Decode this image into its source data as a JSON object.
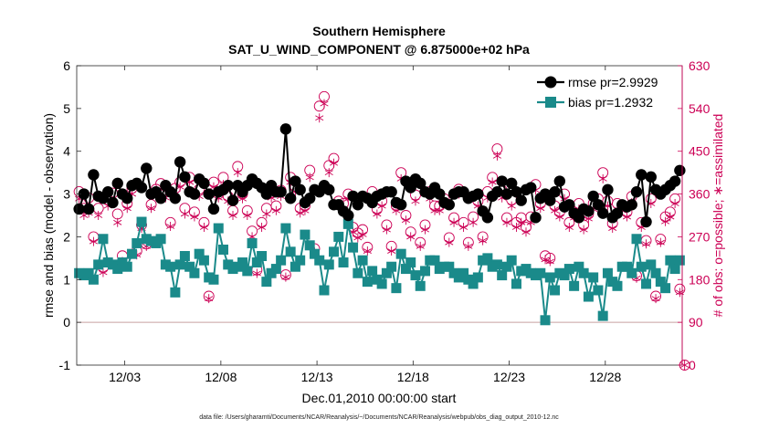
{
  "chart_data": {
    "type": "line",
    "title": "Southern Hemisphere",
    "subtitle": "SAT_U_WIND_COMPONENT @ 6.875000e+02 hPa",
    "xlabel": "Dec.01,2010 00:00:00 start",
    "ylabel": "rmse and bias (model - observation)",
    "y2label": "# of obs: o=possible; ∗=assimilated",
    "footer": "data file: /Users/gharamti/Documents/NCAR/Reanalysis/~/Documents/NCAR/Reanalysis/webpub/obs_diag_output_2010-12.nc",
    "xlim": [
      0.0,
      31.5
    ],
    "ylim": [
      -1,
      6
    ],
    "y2lim": [
      0,
      630
    ],
    "x_ticks": [
      2.5,
      7.5,
      12.5,
      17.5,
      22.5,
      27.5
    ],
    "x_tick_labels": [
      "12/03",
      "12/08",
      "12/13",
      "12/18",
      "12/23",
      "12/28"
    ],
    "y_ticks": [
      -1,
      0,
      1,
      2,
      3,
      4,
      5,
      6
    ],
    "y_tick_labels": [
      "-1",
      "0",
      "1",
      "2",
      "3",
      "4",
      "5",
      "6"
    ],
    "y2_ticks": [
      0,
      90,
      180,
      270,
      360,
      450,
      540,
      630
    ],
    "y2_tick_labels": [
      "0",
      "90",
      "180",
      "270",
      "360",
      "450",
      "540",
      "630"
    ],
    "zero_line": 0,
    "legend": {
      "position": "top-right",
      "entries": [
        "rmse pr=2.9929",
        "bias pr=1.2932"
      ]
    },
    "colors": {
      "rmse": "#000000",
      "bias": "#1a8a8a",
      "obs": "#cc0055",
      "right_axis": "#cc0055",
      "zero_line": "#c8a0a0"
    },
    "segments": [
      {
        "x": [
          0.125,
          0.375,
          0.625,
          0.875,
          1.125,
          1.375,
          1.625,
          1.875,
          2.125,
          2.375,
          2.625,
          2.875,
          3.125,
          3.375,
          3.625,
          3.875,
          4.125,
          4.375,
          4.625,
          4.875,
          5.125,
          5.375,
          5.625,
          5.875,
          6.125,
          6.375,
          6.625,
          6.875,
          7.125,
          7.375,
          7.625,
          7.875,
          8.125,
          8.375,
          8.625,
          8.875,
          9.125,
          9.375,
          9.625,
          9.875,
          10.125,
          10.375,
          10.625,
          10.875,
          11.125,
          11.375,
          11.625,
          11.875,
          12.125,
          12.375,
          12.625,
          12.875,
          13.125,
          13.375,
          13.625,
          13.875,
          14.125,
          14.375,
          14.625,
          14.875,
          15.125,
          15.375,
          15.625,
          15.875,
          16.125,
          16.375,
          16.625,
          16.875,
          17.125,
          17.375,
          17.625,
          17.875,
          18.125,
          18.375,
          18.625,
          18.875,
          19.125,
          19.375,
          19.625,
          19.875,
          20.125,
          20.375,
          20.625,
          20.875,
          21.125,
          21.375,
          21.625,
          21.875,
          22.125,
          22.375,
          22.625,
          22.875,
          23.125,
          23.375,
          23.625,
          23.875
        ],
        "rmse": [
          2.65,
          3.0,
          2.65,
          3.45,
          2.95,
          2.9,
          3.05,
          2.8,
          3.25,
          3.0,
          2.9,
          3.2,
          3.25,
          3.15,
          3.6,
          3.0,
          3.05,
          2.9,
          3.2,
          3.05,
          2.9,
          3.75,
          3.4,
          3.05,
          3.0,
          3.35,
          3.25,
          3.0,
          2.65,
          3.05,
          3.1,
          3.2,
          2.85,
          3.2,
          3.05,
          3.2,
          3.35,
          3.25,
          3.15,
          3.0,
          3.2,
          3.05,
          3.05,
          4.52,
          2.9,
          3.3,
          3.1,
          2.8,
          2.9,
          3.1,
          3.05,
          3.2,
          3.1,
          2.75,
          2.75,
          2.6,
          2.5,
          2.95,
          2.75,
          2.95,
          2.9,
          2.8,
          2.95,
          3.0,
          3.05,
          3.05,
          2.8,
          2.75,
          3.3,
          3.15,
          3.35,
          3.25,
          3.05,
          3.0,
          3.15,
          3.0,
          2.8,
          2.75,
          3.0,
          3.05,
          3.05,
          2.9,
          2.95,
          3.0,
          2.6,
          2.45,
          2.95,
          3.05,
          3.3,
          3.0,
          3.25,
          3.05,
          2.85,
          3.1,
          3.15,
          2.45
        ],
        "bias": [
          1.15,
          1.1,
          1.15,
          1.0,
          1.35,
          1.95,
          1.4,
          1.35,
          1.25,
          1.4,
          1.3,
          1.6,
          1.85,
          2.35,
          1.95,
          1.9,
          1.85,
          1.95,
          1.35,
          1.3,
          0.7,
          1.35,
          1.55,
          1.3,
          1.15,
          1.6,
          1.45,
          1.05,
          1.0,
          2.2,
          1.7,
          1.35,
          1.25,
          1.3,
          1.4,
          1.2,
          1.85,
          1.4,
          1.55,
          0.95,
          1.15,
          1.25,
          1.45,
          2.2,
          1.65,
          1.3,
          1.45,
          2.05,
          1.8,
          1.6,
          1.45,
          0.75,
          1.35,
          1.65,
          2.0,
          1.4,
          2.3,
          1.75,
          1.15,
          1.45,
          0.95,
          1.2,
          1.0,
          0.9,
          1.15,
          1.3,
          0.8,
          1.6,
          1.25,
          1.4,
          1.1,
          0.85,
          1.2,
          1.45,
          1.45,
          1.25,
          1.3,
          1.3,
          1.15,
          1.05,
          1.15,
          1.0,
          0.9,
          1.05,
          1.45,
          1.5,
          1.3,
          1.35,
          1.1,
          1.3,
          1.45,
          0.9,
          1.2,
          1.25,
          1.15,
          1.1
        ]
      },
      {
        "x": [
          24.125,
          24.375,
          24.625,
          24.875,
          25.125,
          25.375,
          25.625,
          25.875,
          26.125,
          26.375,
          26.625,
          26.875,
          27.125,
          27.375,
          27.625,
          27.875,
          28.125,
          28.375,
          28.625,
          28.875,
          29.125,
          29.375,
          29.625,
          29.875,
          30.125,
          30.375,
          30.625,
          30.875,
          31.125,
          31.375
        ],
        "rmse": [
          2.9,
          3.0,
          2.85,
          3.05,
          3.3,
          2.7,
          2.75,
          2.55,
          2.45,
          2.65,
          2.6,
          2.95,
          2.75,
          2.55,
          3.1,
          2.45,
          2.55,
          2.75,
          2.7,
          2.75,
          3.05,
          3.45,
          2.35,
          3.4,
          3.1,
          3.0,
          3.1,
          3.2,
          3.3,
          3.55
        ],
        "bias": [
          1.15,
          0.05,
          1.05,
          0.75,
          1.15,
          1.1,
          1.25,
          0.85,
          1.3,
          1.15,
          0.6,
          1.05,
          0.75,
          0.15,
          1.15,
          0.95,
          0.85,
          1.3,
          1.3,
          1.15,
          1.95,
          1.3,
          0.9,
          1.35,
          1.15,
          0.95,
          0.8,
          1.45,
          1.25,
          1.45
        ]
      }
    ],
    "obs_possible": {
      "x": [
        0.125,
        0.375,
        0.625,
        0.875,
        1.125,
        1.375,
        1.625,
        1.875,
        2.125,
        2.375,
        2.625,
        2.875,
        3.125,
        3.375,
        3.625,
        3.875,
        4.125,
        4.375,
        4.625,
        4.875,
        5.125,
        5.375,
        5.625,
        5.875,
        6.125,
        6.375,
        6.625,
        6.875,
        7.125,
        7.375,
        7.625,
        7.875,
        8.125,
        8.375,
        8.625,
        8.875,
        9.125,
        9.375,
        9.625,
        9.875,
        10.125,
        10.375,
        10.625,
        10.875,
        11.125,
        11.375,
        11.625,
        11.875,
        12.125,
        12.375,
        12.625,
        12.875,
        13.125,
        13.375,
        13.625,
        13.875,
        14.125,
        14.375,
        14.625,
        14.875,
        15.125,
        15.375,
        15.625,
        15.875,
        16.125,
        16.375,
        16.625,
        16.875,
        17.125,
        17.375,
        17.625,
        17.875,
        18.125,
        18.375,
        18.625,
        18.875,
        19.125,
        19.375,
        19.625,
        19.875,
        20.125,
        20.375,
        20.625,
        20.875,
        21.125,
        21.375,
        21.625,
        21.875,
        22.125,
        22.375,
        22.625,
        22.875,
        23.125,
        23.375,
        23.625,
        23.875,
        24.125,
        24.375,
        24.625,
        24.875,
        25.125,
        25.375,
        25.625,
        25.875,
        26.125,
        26.375,
        26.625,
        26.875,
        27.125,
        27.375,
        27.625,
        27.875,
        28.125,
        28.375,
        28.625,
        28.875,
        29.125,
        29.375,
        29.625,
        29.875,
        30.125,
        30.375,
        30.625,
        30.875,
        31.125,
        31.375
      ],
      "values": [
        365,
        330,
        352,
        270,
        330,
        205,
        348,
        362,
        318,
        230,
        340,
        372,
        240,
        295,
        255,
        338,
        370,
        382,
        365,
        300,
        372,
        385,
        330,
        395,
        322,
        370,
        300,
        145,
        385,
        360,
        395,
        355,
        325,
        418,
        360,
        325,
        282,
        200,
        300,
        330,
        362,
        335,
        368,
        190,
        395,
        375,
        330,
        335,
        410,
        245,
        545,
        565,
        420,
        435,
        345,
        340,
        360,
        290,
        278,
        285,
        248,
        365,
        328,
        345,
        295,
        250,
        335,
        405,
        315,
        280,
        358,
        258,
        295,
        365,
        335,
        335,
        350,
        268,
        310,
        370,
        300,
        258,
        312,
        345,
        270,
        365,
        395,
        455,
        368,
        310,
        348,
        300,
        310,
        290,
        312,
        380,
        340,
        230,
        225,
        335,
        322,
        360,
        300,
        320,
        340,
        295,
        318,
        340,
        350,
        405,
        345,
        298,
        340,
        335,
        322,
        355,
        188,
        300,
        262,
        350,
        145,
        265,
        312,
        322,
        350,
        160
      ],
      "extra_markers": [
        {
          "x": 31.625,
          "value": 0
        }
      ]
    },
    "obs_assimilated": {
      "x": [
        0.125,
        0.375,
        0.625,
        0.875,
        1.125,
        1.375,
        1.625,
        1.875,
        2.125,
        2.375,
        2.625,
        2.875,
        3.125,
        3.375,
        3.625,
        3.875,
        4.125,
        4.375,
        4.625,
        4.875,
        5.125,
        5.375,
        5.625,
        5.875,
        6.125,
        6.375,
        6.625,
        6.875,
        7.125,
        7.375,
        7.625,
        7.875,
        8.125,
        8.375,
        8.625,
        8.875,
        9.125,
        9.375,
        9.625,
        9.875,
        10.125,
        10.375,
        10.625,
        10.875,
        11.125,
        11.375,
        11.625,
        11.875,
        12.125,
        12.375,
        12.625,
        12.875,
        13.125,
        13.375,
        13.625,
        13.875,
        14.125,
        14.375,
        14.625,
        14.875,
        15.125,
        15.375,
        15.625,
        15.875,
        16.125,
        16.375,
        16.625,
        16.875,
        17.125,
        17.375,
        17.625,
        17.875,
        18.125,
        18.375,
        18.625,
        18.875,
        19.125,
        19.375,
        19.625,
        19.875,
        20.125,
        20.375,
        20.625,
        20.875,
        21.125,
        21.375,
        21.625,
        21.875,
        22.125,
        22.375,
        22.625,
        22.875,
        23.125,
        23.375,
        23.625,
        23.875,
        24.125,
        24.375,
        24.625,
        24.875,
        25.125,
        25.375,
        25.625,
        25.875,
        26.125,
        26.375,
        26.625,
        26.875,
        27.125,
        27.375,
        27.625,
        27.875,
        28.125,
        28.375,
        28.625,
        28.875,
        29.125,
        29.375,
        29.625,
        29.875,
        30.125,
        30.375,
        30.625,
        30.875,
        31.125,
        31.375
      ],
      "values": [
        350,
        315,
        320,
        260,
        315,
        195,
        335,
        345,
        300,
        218,
        330,
        360,
        232,
        288,
        250,
        330,
        355,
        370,
        352,
        292,
        360,
        375,
        318,
        385,
        312,
        355,
        290,
        140,
        375,
        352,
        380,
        345,
        315,
        405,
        350,
        315,
        270,
        193,
        290,
        318,
        352,
        325,
        355,
        185,
        385,
        365,
        320,
        325,
        395,
        238,
        520,
        550,
        405,
        425,
        335,
        328,
        350,
        280,
        268,
        275,
        240,
        352,
        318,
        335,
        285,
        240,
        325,
        392,
        305,
        270,
        345,
        250,
        285,
        350,
        325,
        325,
        340,
        258,
        300,
        360,
        290,
        250,
        300,
        335,
        262,
        352,
        385,
        440,
        352,
        300,
        335,
        290,
        300,
        280,
        300,
        368,
        330,
        222,
        218,
        325,
        312,
        350,
        290,
        310,
        328,
        285,
        308,
        328,
        340,
        392,
        335,
        288,
        328,
        325,
        312,
        342,
        183,
        290,
        255,
        340,
        140,
        258,
        302,
        312,
        340,
        153
      ]
    }
  }
}
